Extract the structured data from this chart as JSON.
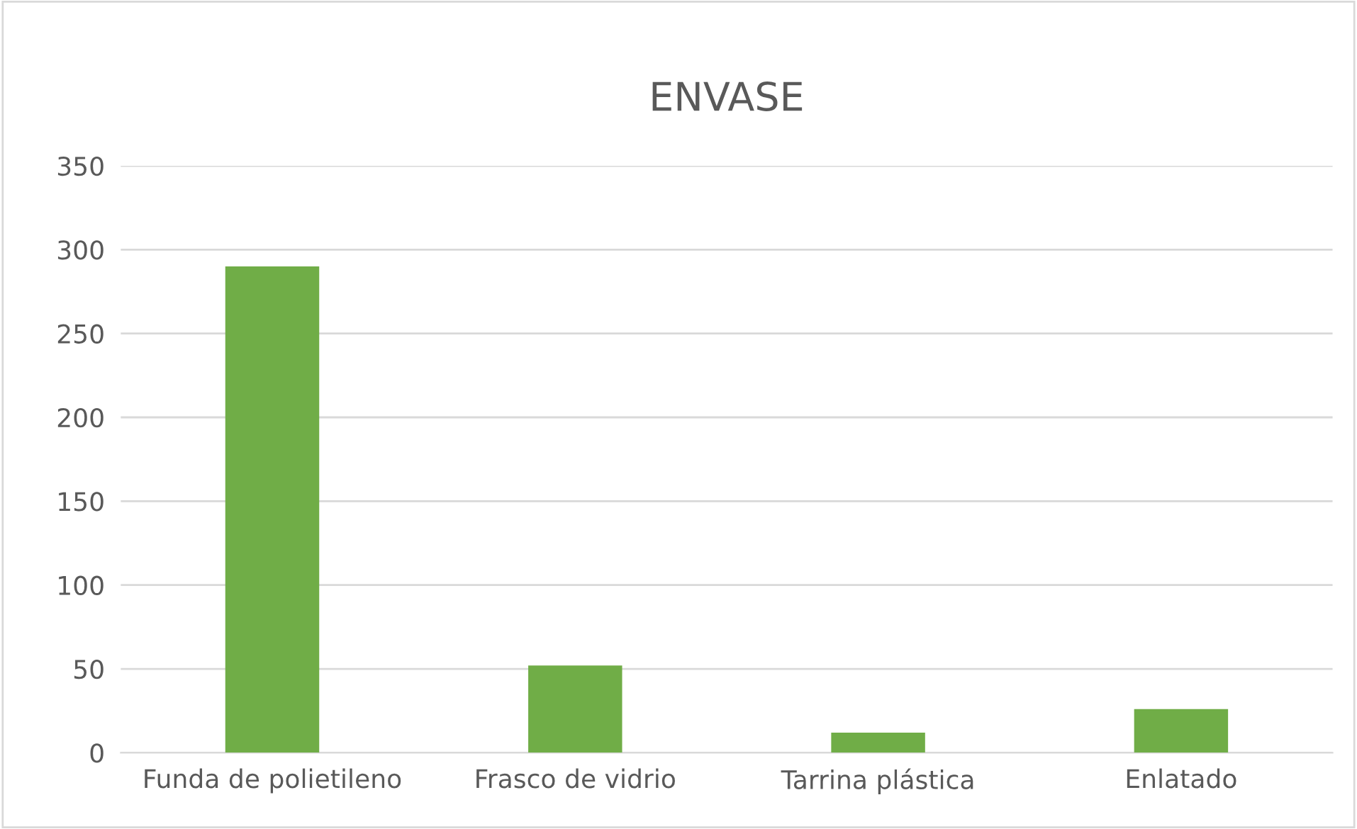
{
  "chart_data": {
    "type": "bar",
    "title": "ENVASE",
    "categories": [
      "Funda de polietileno",
      "Frasco de vidrio",
      "Tarrina plástica",
      "Enlatado"
    ],
    "values": [
      290,
      52,
      12,
      26
    ],
    "color": "#70ad47",
    "ylim": [
      0,
      350
    ],
    "yticks": [
      0,
      50,
      100,
      150,
      200,
      250,
      300,
      350
    ],
    "grid": "y",
    "legend": false
  }
}
